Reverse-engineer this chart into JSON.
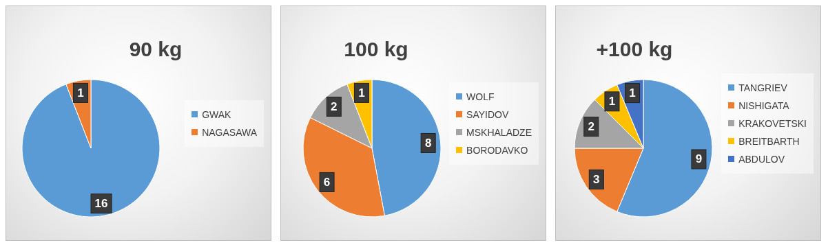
{
  "chart_data": [
    {
      "type": "pie",
      "title": "90 kg",
      "categories": [
        "GWAK",
        "NAGASAWA"
      ],
      "values": [
        16,
        1
      ],
      "colors": [
        "#5b9bd5",
        "#ed7d31"
      ],
      "data_labels": true,
      "legend": "right"
    },
    {
      "type": "pie",
      "title": "100 kg",
      "categories": [
        "WOLF",
        "SAYIDOV",
        "MSKHALADZE",
        "BORODAVKO"
      ],
      "values": [
        8,
        6,
        2,
        1
      ],
      "colors": [
        "#5b9bd5",
        "#ed7d31",
        "#a5a5a5",
        "#ffc000"
      ],
      "data_labels": true,
      "legend": "right"
    },
    {
      "type": "pie",
      "title": "+100 kg",
      "categories": [
        "TANGRIEV",
        "NISHIGATA",
        "KRAKOVETSKI",
        "BREITBARTH",
        "ABDULOV"
      ],
      "values": [
        9,
        3,
        2,
        1,
        1
      ],
      "colors": [
        "#5b9bd5",
        "#ed7d31",
        "#a5a5a5",
        "#ffc000",
        "#4472c4"
      ],
      "data_labels": true,
      "legend": "right"
    }
  ]
}
